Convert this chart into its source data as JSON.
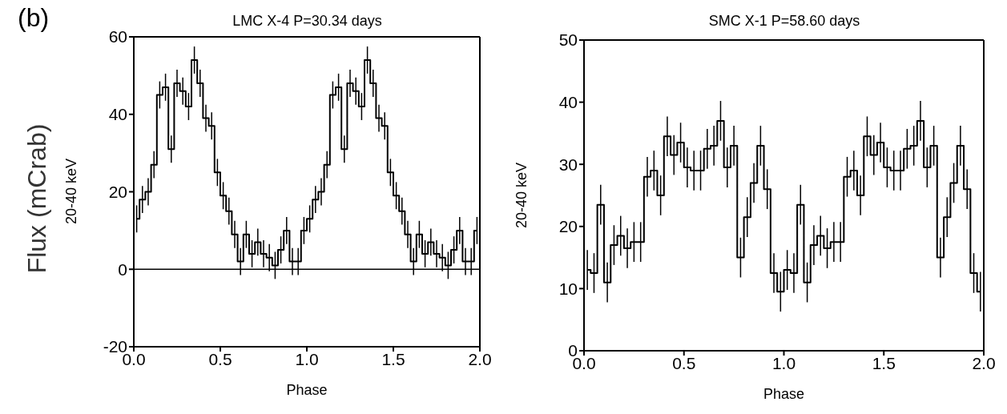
{
  "chart_data": [
    {
      "type": "step",
      "title": "LMC X-4 P=30.34 days",
      "xlabel": "Phase",
      "ylabel": "20-40 keV",
      "annotations": [
        "(b)",
        "Flux (mCrab)"
      ],
      "color": "#000000",
      "x": [
        0.0167,
        0.05,
        0.0833,
        0.1167,
        0.15,
        0.1833,
        0.2167,
        0.25,
        0.2833,
        0.3167,
        0.35,
        0.3833,
        0.4167,
        0.45,
        0.4833,
        0.5167,
        0.55,
        0.5833,
        0.6167,
        0.65,
        0.6833,
        0.7167,
        0.75,
        0.7833,
        0.8167,
        0.85,
        0.8833,
        0.9167,
        0.95,
        0.9833,
        1.0167,
        1.05,
        1.0833,
        1.1167,
        1.15,
        1.1833,
        1.2167,
        1.25,
        1.2833,
        1.3167,
        1.35,
        1.3833,
        1.4167,
        1.45,
        1.4833,
        1.5167,
        1.55,
        1.5833,
        1.6167,
        1.65,
        1.6833,
        1.7167,
        1.75,
        1.7833,
        1.8167,
        1.85,
        1.8833,
        1.9167,
        1.95,
        1.9833
      ],
      "values": [
        13,
        18,
        20,
        27,
        45,
        47,
        31,
        48,
        46,
        42,
        54,
        48,
        39,
        37,
        25,
        19,
        15,
        9,
        2,
        9,
        4,
        7,
        4,
        3,
        1,
        5,
        10,
        2,
        2,
        10,
        13,
        18,
        20,
        27,
        45,
        47,
        31,
        48,
        46,
        42,
        54,
        48,
        39,
        37,
        25,
        19,
        15,
        9,
        2,
        9,
        4,
        7,
        4,
        3,
        1,
        5,
        10,
        2,
        2,
        10
      ],
      "errors": [
        3.5,
        3.5,
        3.5,
        3.5,
        3.5,
        3.5,
        3.5,
        3.5,
        3.5,
        3.5,
        3.5,
        3.5,
        3.5,
        3.5,
        3.5,
        3.5,
        3.5,
        3.5,
        3.5,
        3.5,
        3.5,
        3.5,
        3.5,
        3.5,
        3.5,
        3.5,
        3.5,
        3.5,
        3.5,
        3.5,
        3.5,
        3.5,
        3.5,
        3.5,
        3.5,
        3.5,
        3.5,
        3.5,
        3.5,
        3.5,
        3.5,
        3.5,
        3.5,
        3.5,
        3.5,
        3.5,
        3.5,
        3.5,
        3.5,
        3.5,
        3.5,
        3.5,
        3.5,
        3.5,
        3.5,
        3.5,
        3.5,
        3.5,
        3.5,
        3.5
      ],
      "xlim": [
        0,
        2
      ],
      "xticks": [
        {
          "value": 0,
          "label": "0.0"
        },
        {
          "value": 0.5,
          "label": "0.5"
        },
        {
          "value": 1,
          "label": "1.0"
        },
        {
          "value": 1.5,
          "label": "1.5"
        },
        {
          "value": 2,
          "label": "2.0"
        }
      ],
      "ylim": [
        -20,
        60
      ],
      "yticks": [
        -20,
        0,
        20,
        40,
        60
      ],
      "ref_lines": [
        {
          "axis": "y",
          "value": 0
        }
      ]
    },
    {
      "type": "step",
      "title": "SMC X-1 P=58.60 days",
      "xlabel": "Phase",
      "ylabel": "20-40 keV",
      "color": "#000000",
      "x": [
        0.0167,
        0.05,
        0.0833,
        0.1167,
        0.15,
        0.1833,
        0.2167,
        0.25,
        0.2833,
        0.3167,
        0.35,
        0.3833,
        0.4167,
        0.45,
        0.4833,
        0.5167,
        0.55,
        0.5833,
        0.6167,
        0.65,
        0.6833,
        0.7167,
        0.75,
        0.7833,
        0.8167,
        0.85,
        0.8833,
        0.9167,
        0.95,
        0.9833,
        1.0167,
        1.05,
        1.0833,
        1.1167,
        1.15,
        1.1833,
        1.2167,
        1.25,
        1.2833,
        1.3167,
        1.35,
        1.3833,
        1.4167,
        1.45,
        1.4833,
        1.5167,
        1.55,
        1.5833,
        1.6167,
        1.65,
        1.6833,
        1.7167,
        1.75,
        1.7833,
        1.8167,
        1.85,
        1.8833,
        1.9167,
        1.95,
        1.9833
      ],
      "values": [
        13,
        12.5,
        23.5,
        11,
        17,
        18.5,
        16.5,
        17.5,
        17.5,
        28,
        29,
        25,
        34.5,
        31.5,
        33.5,
        29.5,
        29,
        29,
        32.5,
        33,
        37,
        29.5,
        33,
        15,
        21.5,
        27,
        33,
        26,
        12.5,
        9.5,
        13,
        12.5,
        23.5,
        11,
        17,
        18.5,
        16.5,
        17.5,
        17.5,
        28,
        29,
        25,
        34.5,
        31.5,
        33.5,
        29.5,
        29,
        29,
        32.5,
        33,
        37,
        29.5,
        33,
        15,
        21.5,
        27,
        33,
        26,
        12.5,
        9.5
      ],
      "errors": [
        3.2,
        3.2,
        3.2,
        3.2,
        3.2,
        3.2,
        3.2,
        3.2,
        3.2,
        3.2,
        3.2,
        3.2,
        3.2,
        3.2,
        3.2,
        3.2,
        3.2,
        3.2,
        3.2,
        3.2,
        3.2,
        3.2,
        3.2,
        3.2,
        3.2,
        3.2,
        3.2,
        3.2,
        3.2,
        3.2,
        3.2,
        3.2,
        3.2,
        3.2,
        3.2,
        3.2,
        3.2,
        3.2,
        3.2,
        3.2,
        3.2,
        3.2,
        3.2,
        3.2,
        3.2,
        3.2,
        3.2,
        3.2,
        3.2,
        3.2,
        3.2,
        3.2,
        3.2,
        3.2,
        3.2,
        3.2,
        3.2,
        3.2,
        3.2,
        3.2
      ],
      "xlim": [
        0,
        2
      ],
      "xticks": [
        {
          "value": 0,
          "label": "0.0"
        },
        {
          "value": 0.5,
          "label": "0.5"
        },
        {
          "value": 1,
          "label": "1.0"
        },
        {
          "value": 1.5,
          "label": "1.5"
        },
        {
          "value": 2,
          "label": "2.0"
        }
      ],
      "ylim": [
        0,
        50
      ],
      "yticks": [
        0,
        10,
        20,
        30,
        40,
        50
      ]
    }
  ]
}
